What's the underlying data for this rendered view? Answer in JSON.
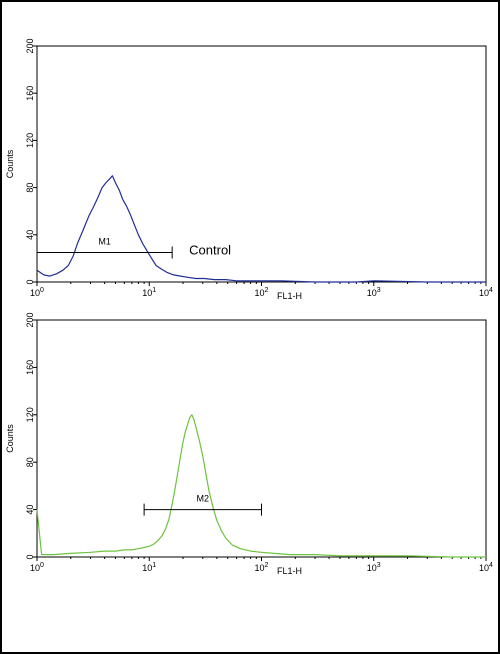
{
  "chart_data": [
    {
      "type": "line",
      "title": "",
      "xlabel": "FL1-H",
      "ylabel": "Counts",
      "xscale": "log",
      "xlim": [
        1,
        10000
      ],
      "ylim": [
        0,
        200
      ],
      "x_tick_labels": [
        {
          "base": "10",
          "exp": "0"
        },
        {
          "base": "10",
          "exp": "1"
        },
        {
          "base": "10",
          "exp": "2"
        },
        {
          "base": "10",
          "exp": "3"
        },
        {
          "base": "10",
          "exp": "4"
        }
      ],
      "y_ticks": [
        "0",
        "40",
        "80",
        "120",
        "160",
        "200"
      ],
      "grid": false,
      "line_color": "#1f2f9a",
      "series": [
        {
          "x": [
            1.0,
            1.15,
            1.3,
            1.5,
            1.7,
            1.9,
            2.1,
            2.3,
            2.6,
            2.9,
            3.2,
            3.5,
            3.8,
            4.1,
            4.4,
            4.7,
            5.0,
            5.4,
            5.8,
            6.3,
            6.8,
            7.4,
            8.0,
            8.8,
            9.6,
            10.5,
            11.5,
            12.8,
            14.5,
            16.5,
            19.0,
            22.0,
            26.0,
            31.0,
            38.0,
            48.0,
            60.0,
            80.0,
            110.0,
            150.0,
            300.0,
            700.0,
            1000.0,
            3000.0,
            10000.0
          ],
          "y": [
            10,
            6,
            5,
            7,
            10,
            14,
            22,
            33,
            45,
            56,
            64,
            72,
            80,
            84,
            87,
            90,
            84,
            78,
            70,
            64,
            57,
            48,
            40,
            32,
            26,
            20,
            14,
            11,
            8,
            6,
            5,
            4,
            3,
            3,
            2,
            2,
            1,
            1,
            1,
            1,
            0,
            0,
            1,
            0,
            0
          ]
        }
      ],
      "gate": {
        "label": "M1",
        "x_start": 1.0,
        "x_end": 16.0,
        "y": 25
      },
      "annotation": "Control"
    },
    {
      "type": "line",
      "title": "",
      "xlabel": "FL1-H",
      "ylabel": "Counts",
      "xscale": "log",
      "xlim": [
        1,
        10000
      ],
      "ylim": [
        0,
        200
      ],
      "x_tick_labels": [
        {
          "base": "10",
          "exp": "0"
        },
        {
          "base": "10",
          "exp": "1"
        },
        {
          "base": "10",
          "exp": "2"
        },
        {
          "base": "10",
          "exp": "3"
        },
        {
          "base": "10",
          "exp": "4"
        }
      ],
      "y_ticks": [
        "0",
        "40",
        "80",
        "120",
        "160",
        "200"
      ],
      "grid": false,
      "line_color": "#6cc33c",
      "series": [
        {
          "x": [
            1.0,
            1.1,
            1.4,
            2.0,
            3.0,
            4.0,
            5.0,
            6.0,
            7.0,
            8.0,
            9.0,
            10.0,
            11.0,
            12.0,
            13.0,
            14.0,
            15.0,
            16.0,
            17.0,
            18.0,
            19.0,
            20.0,
            21.0,
            22.0,
            23.0,
            24.0,
            25.0,
            26.0,
            28.0,
            30.0,
            32.0,
            34.0,
            37.0,
            40.0,
            44.0,
            48.0,
            55.0,
            65.0,
            80.0,
            100.0,
            130.0,
            180.0,
            300.0,
            500.0,
            1000.0,
            2000.0,
            5000.0,
            10000.0
          ],
          "y": [
            40,
            2,
            2,
            3,
            4,
            5,
            5,
            6,
            6,
            7,
            8,
            9,
            11,
            14,
            18,
            24,
            32,
            45,
            58,
            72,
            85,
            97,
            106,
            112,
            118,
            120,
            116,
            110,
            98,
            85,
            70,
            56,
            42,
            31,
            22,
            16,
            10,
            7,
            5,
            4,
            3,
            2,
            2,
            1,
            1,
            1,
            0,
            0
          ]
        }
      ],
      "gate": {
        "label": "M2",
        "x_start": 9.0,
        "x_end": 100.0,
        "y": 40
      },
      "annotation": ""
    }
  ]
}
